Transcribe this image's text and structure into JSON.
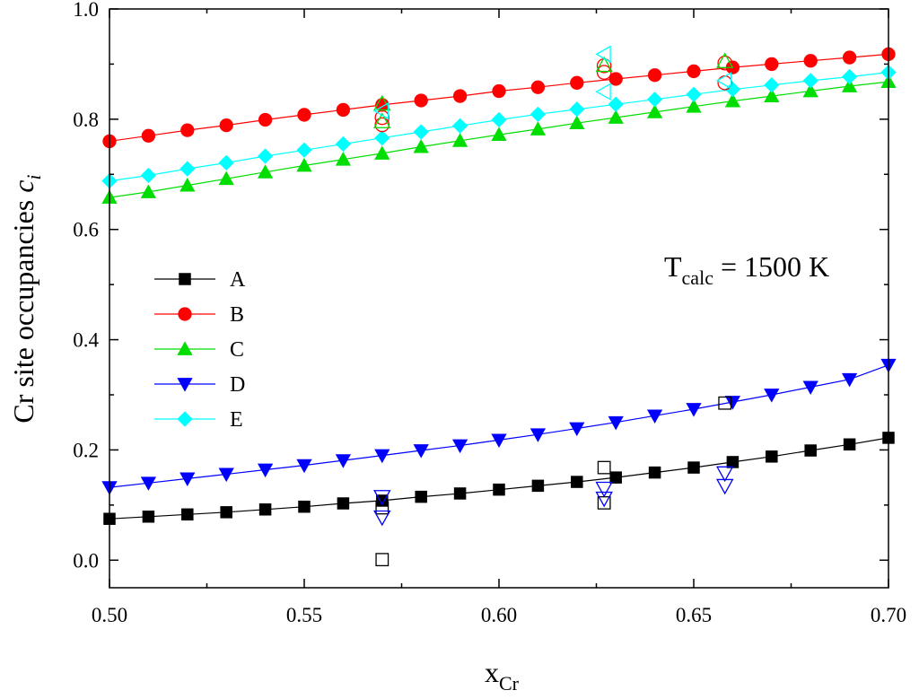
{
  "chart_data": {
    "type": "line",
    "title": "",
    "xlabel": {
      "main": "x",
      "sub": "Cr"
    },
    "ylabel": {
      "main": "Cr site occupancies ",
      "italic": "c",
      "sub": "i"
    },
    "xlim": [
      0.5,
      0.7
    ],
    "ylim": [
      -0.05,
      1.0
    ],
    "xticks": [
      0.5,
      0.55,
      0.6,
      0.65,
      0.7
    ],
    "xtick_labels": [
      "0.50",
      "0.55",
      "0.60",
      "0.65",
      "0.70"
    ],
    "yticks": [
      0.0,
      0.2,
      0.4,
      0.6,
      0.8,
      1.0
    ],
    "ytick_labels": [
      "0.0",
      "0.2",
      "0.4",
      "0.6",
      "0.8",
      "1.0"
    ],
    "annotation": {
      "main": "T",
      "sub": "calc",
      "rest": " = 1500 K"
    },
    "legend_position": "center-left",
    "x": [
      0.5,
      0.51,
      0.52,
      0.53,
      0.54,
      0.55,
      0.56,
      0.57,
      0.58,
      0.59,
      0.6,
      0.61,
      0.62,
      0.63,
      0.64,
      0.65,
      0.66,
      0.67,
      0.68,
      0.69,
      0.7
    ],
    "series": [
      {
        "name": "A",
        "color": "#000000",
        "marker": "square",
        "values": [
          0.075,
          0.079,
          0.083,
          0.087,
          0.092,
          0.097,
          0.103,
          0.108,
          0.115,
          0.121,
          0.128,
          0.135,
          0.142,
          0.15,
          0.159,
          0.168,
          0.178,
          0.188,
          0.199,
          0.21,
          0.222
        ]
      },
      {
        "name": "B",
        "color": "#ff0000",
        "marker": "circle",
        "values": [
          0.76,
          0.77,
          0.78,
          0.789,
          0.799,
          0.808,
          0.817,
          0.826,
          0.834,
          0.842,
          0.851,
          0.858,
          0.866,
          0.873,
          0.88,
          0.887,
          0.894,
          0.9,
          0.906,
          0.912,
          0.918
        ]
      },
      {
        "name": "C",
        "color": "#00dd00",
        "marker": "triangle-up",
        "values": [
          0.658,
          0.668,
          0.68,
          0.692,
          0.704,
          0.716,
          0.727,
          0.738,
          0.75,
          0.761,
          0.772,
          0.782,
          0.793,
          0.803,
          0.813,
          0.823,
          0.833,
          0.842,
          0.851,
          0.86,
          0.868
        ]
      },
      {
        "name": "D",
        "color": "#0000ff",
        "marker": "triangle-down",
        "values": [
          0.132,
          0.14,
          0.148,
          0.156,
          0.164,
          0.172,
          0.181,
          0.19,
          0.199,
          0.208,
          0.218,
          0.228,
          0.239,
          0.25,
          0.262,
          0.274,
          0.287,
          0.3,
          0.314,
          0.328,
          0.354
        ]
      },
      {
        "name": "E",
        "color": "#00ffff",
        "marker": "diamond",
        "values": [
          0.688,
          0.698,
          0.71,
          0.721,
          0.733,
          0.744,
          0.755,
          0.766,
          0.777,
          0.788,
          0.799,
          0.809,
          0.818,
          0.827,
          0.836,
          0.845,
          0.854,
          0.862,
          0.87,
          0.877,
          0.885
        ]
      }
    ],
    "reference_points": [
      {
        "series": "A",
        "color": "#000000",
        "marker": "square-open",
        "points": [
          [
            0.57,
            0.001
          ],
          [
            0.57,
            0.095
          ],
          [
            0.627,
            0.104
          ],
          [
            0.627,
            0.168
          ],
          [
            0.658,
            0.285
          ]
        ]
      },
      {
        "series": "B",
        "color": "#ff0000",
        "marker": "circle-open",
        "points": [
          [
            0.57,
            0.79
          ],
          [
            0.57,
            0.803
          ],
          [
            0.627,
            0.885
          ],
          [
            0.627,
            0.897
          ],
          [
            0.658,
            0.866
          ],
          [
            0.658,
            0.902
          ]
        ]
      },
      {
        "series": "C",
        "color": "#00dd00",
        "marker": "triangle-up-open",
        "points": [
          [
            0.57,
            0.796
          ],
          [
            0.57,
            0.828
          ],
          [
            0.627,
            0.898
          ],
          [
            0.658,
            0.905
          ]
        ]
      },
      {
        "series": "D",
        "color": "#0000ff",
        "marker": "triangle-down-open",
        "points": [
          [
            0.57,
            0.078
          ],
          [
            0.57,
            0.115
          ],
          [
            0.627,
            0.112
          ],
          [
            0.627,
            0.13
          ],
          [
            0.658,
            0.135
          ],
          [
            0.658,
            0.158
          ]
        ]
      },
      {
        "series": "E",
        "color": "#00ffff",
        "marker": "triangle-left-open",
        "points": [
          [
            0.57,
            0.815
          ],
          [
            0.627,
            0.85
          ],
          [
            0.627,
            0.918
          ],
          [
            0.658,
            0.87
          ]
        ]
      }
    ]
  }
}
